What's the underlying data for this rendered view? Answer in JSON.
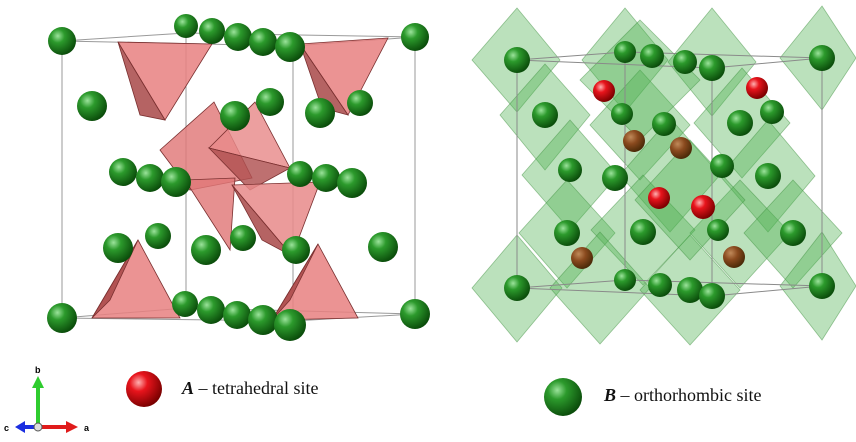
{
  "legend": {
    "a_symbol": "A",
    "a_text": "– tetrahedral site",
    "b_symbol": "B",
    "b_text": "– orthorhombic site"
  },
  "axes": {
    "a": "a",
    "b": "b",
    "c": "c"
  },
  "colors": {
    "a_site": "#e8141c",
    "b_site": "#1f8f1f",
    "tetrahedra": "#e07070",
    "octahedra": "#4caf50",
    "cell_edges": "#9a9a9a"
  }
}
